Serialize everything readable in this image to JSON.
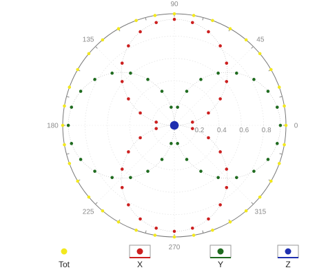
{
  "chart_data": {
    "type": "scatter",
    "title": "",
    "angle_tick_labels": [
      "0",
      "45",
      "90",
      "135",
      "180",
      "225",
      "270",
      "315"
    ],
    "radial_tick_labels": [
      "0.2",
      "0.4",
      "0.6",
      "0.8"
    ],
    "rlim": [
      0,
      1
    ],
    "grid": true,
    "legend_position": "bottom",
    "series": [
      {
        "name": "Tot",
        "color": "#f2e81e",
        "shape": "constant",
        "r": 1.0,
        "angle_step_deg": 10,
        "legend_box": false
      },
      {
        "name": "X",
        "color": "#cc1f1f",
        "shape": "abs_sin",
        "r_max": 0.95,
        "angle_step_deg": 10,
        "legend_box": true
      },
      {
        "name": "Y",
        "color": "#1f6b1f",
        "shape": "abs_cos",
        "r_max": 0.95,
        "angle_step_deg": 10,
        "legend_box": true
      },
      {
        "name": "Z",
        "color": "#1f2fb0",
        "shape": "constant",
        "r": 0.02,
        "angle_step_deg": 10,
        "legend_box": true
      }
    ]
  }
}
